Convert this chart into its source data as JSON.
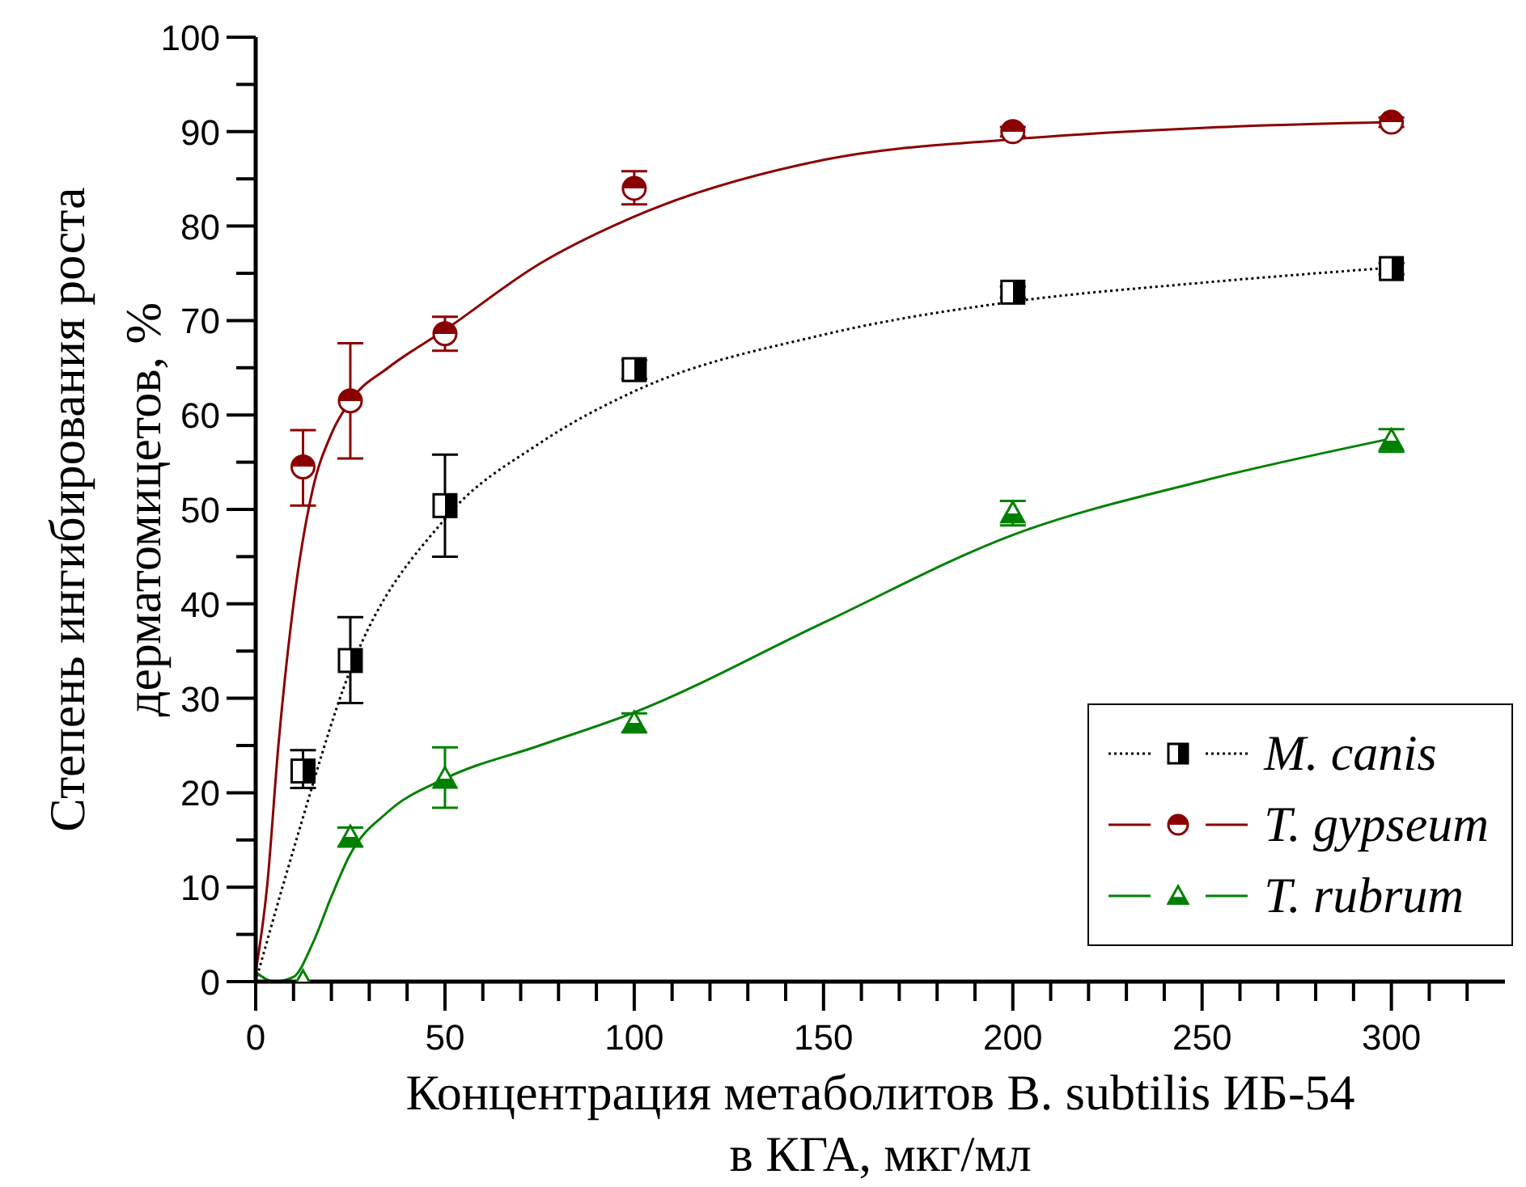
{
  "chart_data": {
    "type": "scatter",
    "xlabel": "Концентрация метаболитов B. subtilis ИБ-54\nв КГА, мкг/мл",
    "ylabel": "Степень ингибирования роста\nдерматомицетов, %",
    "xlim": [
      0,
      330
    ],
    "xticks": [
      0,
      {
        "value": 10,
        "label": null
      },
      {
        "value": 20,
        "label": null
      },
      {
        "value": 30,
        "label": null
      },
      {
        "value": 40,
        "label": null
      },
      50,
      {
        "value": 60,
        "label": null
      },
      {
        "value": 70,
        "label": null
      },
      {
        "value": 80,
        "label": null
      },
      {
        "value": 90,
        "label": null
      },
      100,
      {
        "value": 110,
        "label": null
      },
      {
        "value": 120,
        "label": null
      },
      {
        "value": 130,
        "label": null
      },
      {
        "value": 140,
        "label": null
      },
      150,
      {
        "value": 160,
        "label": null
      },
      {
        "value": 170,
        "label": null
      },
      {
        "value": 180,
        "label": null
      },
      {
        "value": 190,
        "label": null
      },
      200,
      {
        "value": 210,
        "label": null
      },
      {
        "value": 220,
        "label": null
      },
      {
        "value": 230,
        "label": null
      },
      {
        "value": 240,
        "label": null
      },
      250,
      {
        "value": 260,
        "label": null
      },
      {
        "value": 270,
        "label": null
      },
      {
        "value": 280,
        "label": null
      },
      {
        "value": 290,
        "label": null
      },
      300,
      {
        "value": 310,
        "label": null
      },
      {
        "value": 320,
        "label": null
      }
    ],
    "ylim": [
      0,
      100
    ],
    "yticks": [
      0,
      {
        "value": 5,
        "label": null
      },
      10,
      {
        "value": 15,
        "label": null
      },
      20,
      {
        "value": 25,
        "label": null
      },
      30,
      {
        "value": 35,
        "label": null
      },
      40,
      {
        "value": 45,
        "label": null
      },
      50,
      {
        "value": 55,
        "label": null
      },
      60,
      {
        "value": 65,
        "label": null
      },
      70,
      {
        "value": 75,
        "label": null
      },
      80,
      {
        "value": 85,
        "label": null
      },
      90,
      {
        "value": 95,
        "label": null
      },
      100
    ],
    "grid": false,
    "legend": "bottom right",
    "series": [
      {
        "name": "M. canis",
        "marker": "square",
        "color": "#000000",
        "x": [
          12.5,
          25,
          50,
          100,
          200,
          300
        ],
        "values": [
          22.3,
          34,
          50.4,
          64.8,
          73,
          75.5
        ],
        "errors": [
          [
            20.5,
            24.5
          ],
          [
            29.5,
            38.6
          ],
          [
            45,
            55.8
          ],
          1,
          0.6,
          0.6
        ]
      },
      {
        "name": "T. gypseum",
        "marker": "circle",
        "color": "#8b0000",
        "x": [
          12.5,
          25,
          50,
          100,
          200,
          300
        ],
        "values": [
          54.5,
          61.5,
          68.6,
          84,
          90,
          91
        ],
        "errors": [
          [
            50.4,
            58.4
          ],
          [
            55.4,
            67.6
          ],
          [
            66.8,
            70.4
          ],
          [
            82.3,
            85.8
          ],
          0.5,
          0.5
        ]
      },
      {
        "name": "T. rubrum",
        "marker": "triangle",
        "color": "#008000",
        "x": [
          12.5,
          25,
          50,
          100,
          200,
          300
        ],
        "values": [
          0,
          15.3,
          21.5,
          27.4,
          49.6,
          57.3
        ],
        "errors": [
          null,
          1,
          [
            18.4,
            24.8
          ],
          1,
          1.3,
          1.2
        ]
      },
      {
        "type": "line",
        "line_style": "dotted",
        "color": "#000000",
        "x": [
          0,
          10,
          25,
          50,
          75,
          100,
          150,
          200,
          250,
          300
        ],
        "values": [
          0,
          14,
          33,
          49,
          57,
          62.5,
          68.5,
          72,
          74,
          75.6
        ]
      },
      {
        "type": "line",
        "line_style": "solid",
        "color": "#8b0000",
        "x": [
          0,
          3,
          6,
          10,
          15,
          20,
          25,
          35,
          50,
          75,
          100,
          150,
          200,
          250,
          300
        ],
        "values": [
          1,
          10,
          25,
          40,
          52,
          58,
          61.5,
          65,
          69,
          76,
          81,
          87,
          89.2,
          90.4,
          91
        ]
      },
      {
        "type": "line",
        "line_style": "solid",
        "color": "#008000",
        "x": [
          0,
          5,
          10,
          15,
          20,
          25,
          35,
          50,
          75,
          100,
          150,
          200,
          250,
          300
        ],
        "values": [
          1,
          0,
          0.5,
          4,
          9,
          13.5,
          18,
          21.5,
          25,
          28.5,
          38,
          47.3,
          53,
          57.5
        ]
      }
    ]
  }
}
